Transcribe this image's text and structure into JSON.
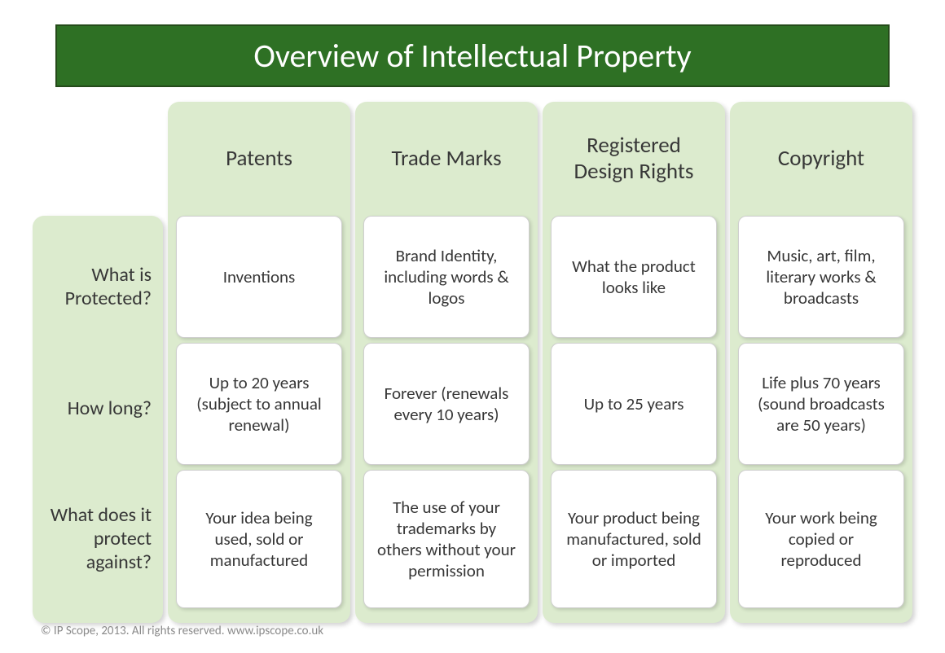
{
  "type": "infographic",
  "title": "Overview of Intellectual Property",
  "colors": {
    "title_bg": "#2e7024",
    "title_border": "#254b1a",
    "title_text": "#ffffff",
    "panel_bg": "#dcebce",
    "cell_bg": "#ffffff",
    "cell_border": "#cfcfcf",
    "text": "#373737",
    "footer_text": "#8a8a8a",
    "page_bg": "#ffffff"
  },
  "typography": {
    "title_fontsize": 40,
    "colhead_fontsize": 27,
    "rowlabel_fontsize": 24,
    "cell_fontsize": 21,
    "footer_fontsize": 15,
    "font_family": "Calibri"
  },
  "layout": {
    "panel_radius": 14,
    "cell_radius": 10,
    "col_gap": 6,
    "rowlabel_width": 160,
    "col_height": 640,
    "rowlabel_panel_height": 500,
    "rowlabel_top_offset": 140
  },
  "row_labels": [
    "What is Protected?",
    "How long?",
    "What does it protect against?"
  ],
  "columns": [
    {
      "header": "Patents",
      "cells": [
        "Inventions",
        "Up to 20 years (subject to annual renewal)",
        "Your idea being used, sold or manufactured"
      ]
    },
    {
      "header": "Trade Marks",
      "cells": [
        "Brand Identity, including words & logos",
        "Forever (renewals every 10 years)",
        "The use of your trademarks by others without your permission"
      ]
    },
    {
      "header": "Registered Design Rights",
      "cells": [
        "What the product looks like",
        "Up to 25 years",
        "Your product being manufactured, sold or imported"
      ]
    },
    {
      "header": "Copyright",
      "cells": [
        "Music, art, film, literary works & broadcasts",
        "Life plus 70 years (sound broadcasts are 50 years)",
        "Your work being copied or reproduced"
      ]
    }
  ],
  "footer": "© IP Scope, 2013.   All rights reserved.  www.ipscope.co.uk"
}
